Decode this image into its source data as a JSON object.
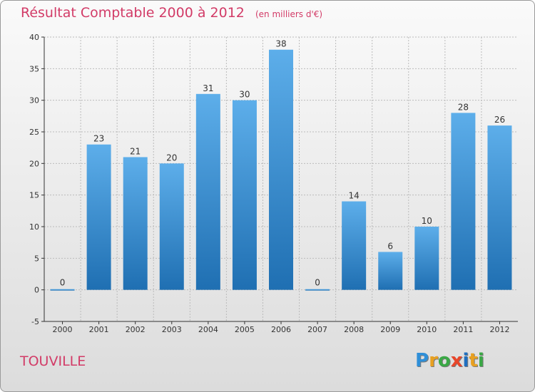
{
  "header": {
    "title": "Résultat Comptable 2000 à 2012",
    "subtitle": "(en milliers d'€)"
  },
  "footer": {
    "commune": "TOUVILLE",
    "logo_text": "Proxiti",
    "logo_colors": [
      "#2f8fd8",
      "#e8a020",
      "#3aa845",
      "#e8462a",
      "#1f6fc0",
      "#e8a020",
      "#3aa845"
    ]
  },
  "colors": {
    "title": "#d23b67",
    "bar_top": "#5daeea",
    "bar_bottom": "#1f6fb2",
    "grid": "#bbbbbb",
    "axis": "#333333"
  },
  "chart_data": {
    "type": "bar",
    "title": "Résultat Comptable 2000 à 2012",
    "subtitle": "(en milliers d'€)",
    "xlabel": "",
    "ylabel": "",
    "categories": [
      "2000",
      "2001",
      "2002",
      "2003",
      "2004",
      "2005",
      "2006",
      "2007",
      "2008",
      "2009",
      "2010",
      "2011",
      "2012"
    ],
    "values": [
      0,
      23,
      21,
      20,
      31,
      30,
      38,
      0,
      14,
      6,
      10,
      28,
      26
    ],
    "data_labels": [
      "0",
      "23",
      "21",
      "20",
      "31",
      "30",
      "38",
      "0",
      "14",
      "6",
      "10",
      "28",
      "26"
    ],
    "ylim": [
      -5,
      40
    ],
    "yticks": [
      -5,
      0,
      5,
      10,
      15,
      20,
      25,
      30,
      35,
      40
    ],
    "ytick_labels": [
      "-5",
      "0",
      "5",
      "10",
      "15",
      "20",
      "25",
      "30",
      "35",
      "40"
    ],
    "grid": true,
    "legend": "none"
  }
}
